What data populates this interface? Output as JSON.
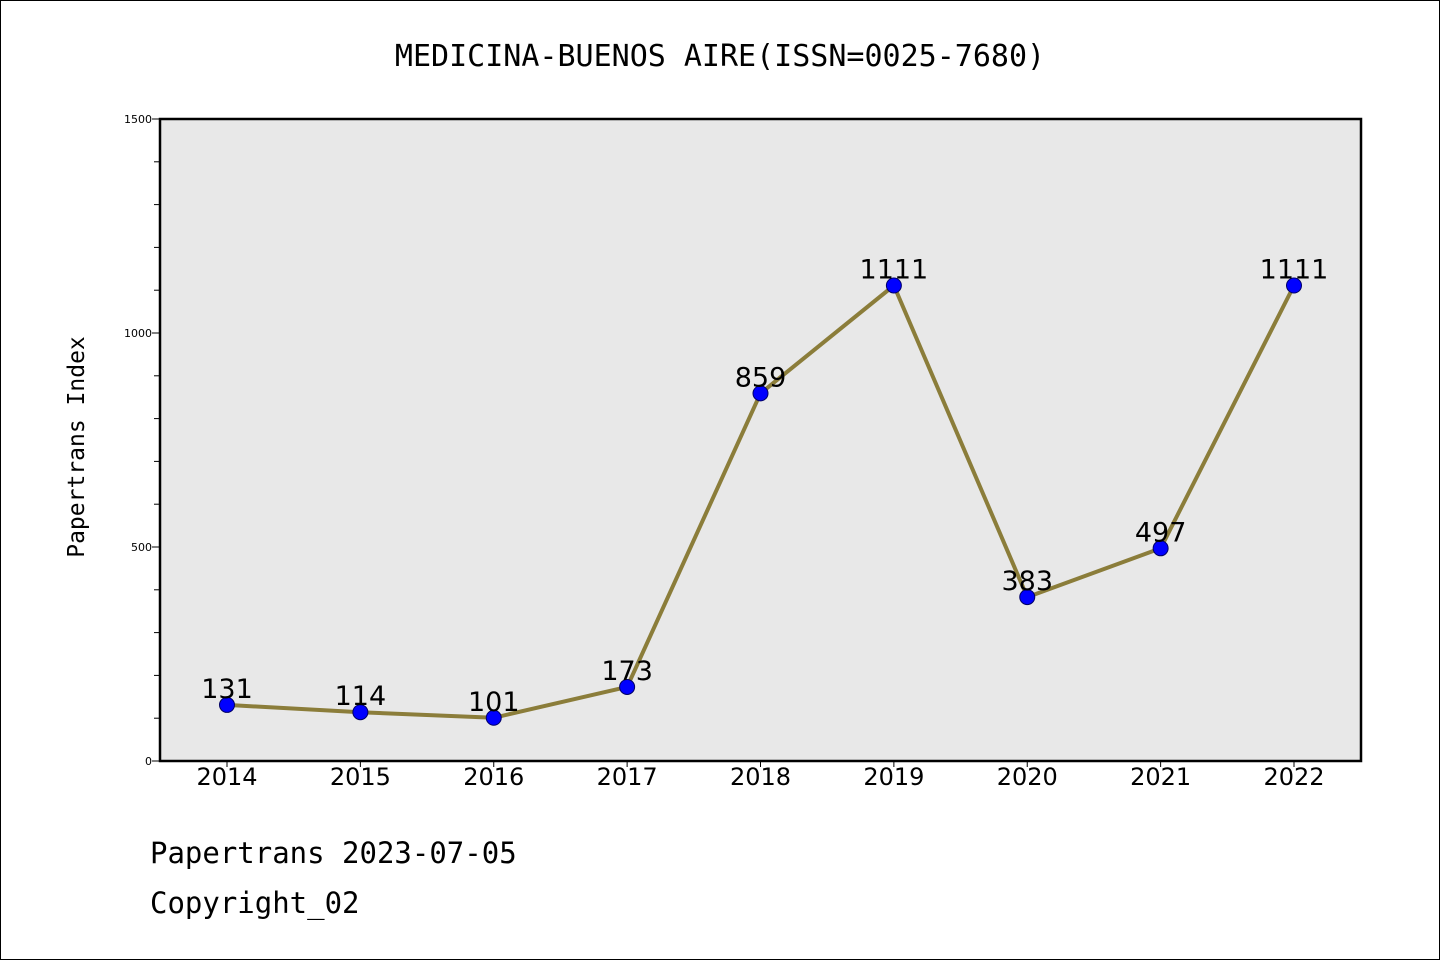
{
  "chart_data": {
    "type": "line",
    "title": "MEDICINA-BUENOS AIRE(ISSN=0025-7680)",
    "xlabel": "",
    "ylabel": "Papertrans Index",
    "categories": [
      "2014",
      "2015",
      "2016",
      "2017",
      "2018",
      "2019",
      "2020",
      "2021",
      "2022"
    ],
    "series": [
      {
        "values": [
          131,
          114,
          101,
          173,
          859,
          1111,
          383,
          497,
          1111
        ]
      }
    ],
    "ylim": [
      0,
      1500
    ],
    "yticks_major": [
      0,
      500,
      1000,
      1500
    ],
    "yticks_minor_step": 100,
    "grid": false,
    "legend": "none",
    "colors": {
      "line": "#8b7d3a",
      "marker": "#0000ff",
      "plot_background": "#e8e8e8",
      "frame": "#000000"
    }
  },
  "footer": {
    "date_line": "Papertrans 2023-07-05",
    "copyright_line": "Copyright_02"
  }
}
